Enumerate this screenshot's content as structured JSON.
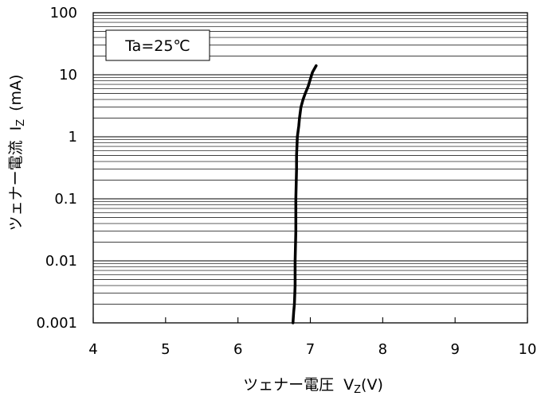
{
  "chart_data": {
    "type": "line",
    "title": "",
    "annotation": "Ta=25℃",
    "xlabel": "ツェナー電圧",
    "xlabel_symbol": "V",
    "xlabel_sub": "Z",
    "xlabel_unit": "(V)",
    "ylabel": "ツェナー電流",
    "ylabel_symbol": "I",
    "ylabel_sub": "Z",
    "ylabel_unit": "(mA)",
    "xlim": [
      4,
      10
    ],
    "ylim": [
      0.001,
      100
    ],
    "yscale": "log",
    "xticks": [
      4,
      5,
      6,
      7,
      8,
      9,
      10
    ],
    "yticks": [
      0.001,
      0.01,
      0.1,
      1,
      10,
      100
    ],
    "xtick_labels": [
      "4",
      "5",
      "6",
      "7",
      "8",
      "9",
      "10"
    ],
    "ytick_labels": [
      "0.001",
      "0.01",
      "0.1",
      "1",
      "10",
      "100"
    ],
    "grid": "horizontal",
    "series": [
      {
        "x": [
          6.76,
          6.77,
          6.78,
          6.79,
          6.79,
          6.8,
          6.8,
          6.81,
          6.81,
          6.82,
          6.84,
          6.85,
          6.87,
          6.9,
          6.93,
          6.97,
          7.0,
          7.03,
          7.08
        ],
        "y": [
          0.001,
          0.0015,
          0.002,
          0.004,
          0.01,
          0.03,
          0.1,
          0.3,
          0.5,
          1.0,
          1.5,
          2.0,
          3.0,
          4.0,
          5.0,
          6.5,
          8.5,
          11.0,
          14.0
        ]
      }
    ]
  }
}
